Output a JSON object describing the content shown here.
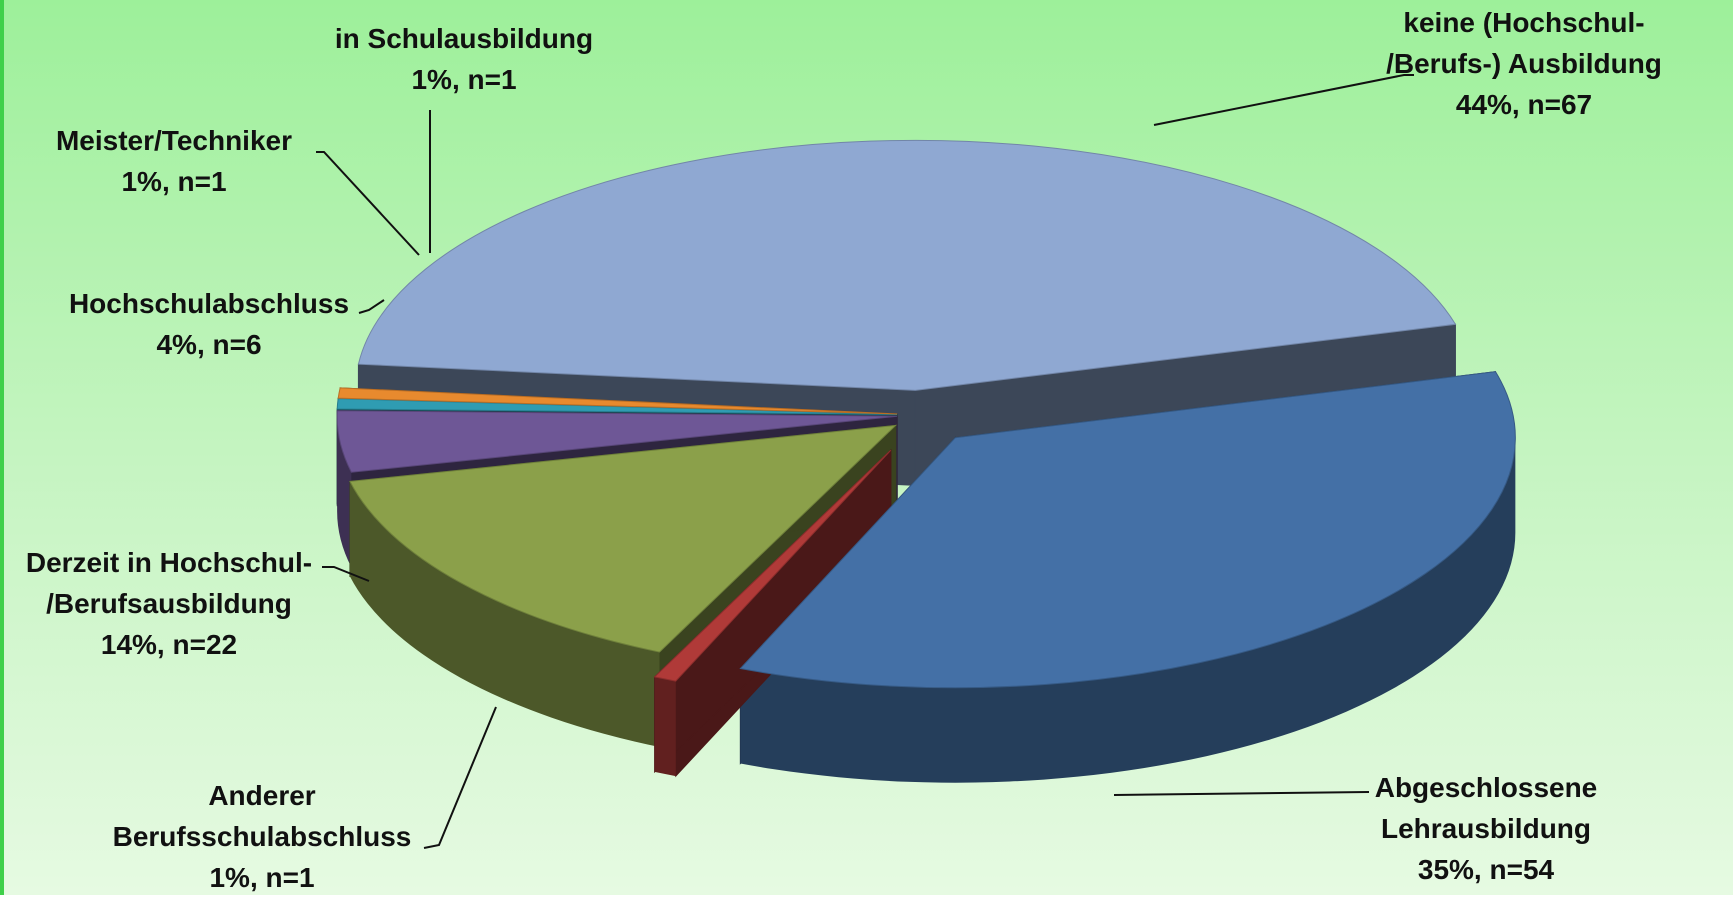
{
  "chart_data": {
    "type": "pie",
    "style": "3d-exploded",
    "slices": [
      {
        "label_lines": [
          "keine (Hochschul-",
          "/Berufs-) Ausbildung"
        ],
        "value_text": "44%, n=67",
        "percent": 44,
        "n": 67,
        "color": "#8fa8d2"
      },
      {
        "label_lines": [
          "Abgeschlossene",
          "Lehrausbildung"
        ],
        "value_text": "35%, n=54",
        "percent": 35,
        "n": 54,
        "color": "#4470a6"
      },
      {
        "label_lines": [
          "Anderer",
          "Berufsschulabschluss"
        ],
        "value_text": "1%, n=1",
        "percent": 1,
        "n": 1,
        "color": "#b03a38"
      },
      {
        "label_lines": [
          "Derzeit in Hochschul-",
          "/Berufsausbildung"
        ],
        "value_text": "14%, n=22",
        "percent": 14,
        "n": 22,
        "color": "#8ba04a"
      },
      {
        "label_lines": [
          "Hochschulabschluss"
        ],
        "value_text": "4%, n=6",
        "percent": 4,
        "n": 6,
        "color": "#6e5796"
      },
      {
        "label_lines": [
          "Meister/Techniker"
        ],
        "value_text": "1%, n=1",
        "percent": 1,
        "n": 1,
        "color": "#2f9cb2"
      },
      {
        "label_lines": [
          "in Schulausbildung"
        ],
        "value_text": "1%, n=1",
        "percent": 1,
        "n": 1,
        "color": "#e88a2e"
      }
    ]
  }
}
